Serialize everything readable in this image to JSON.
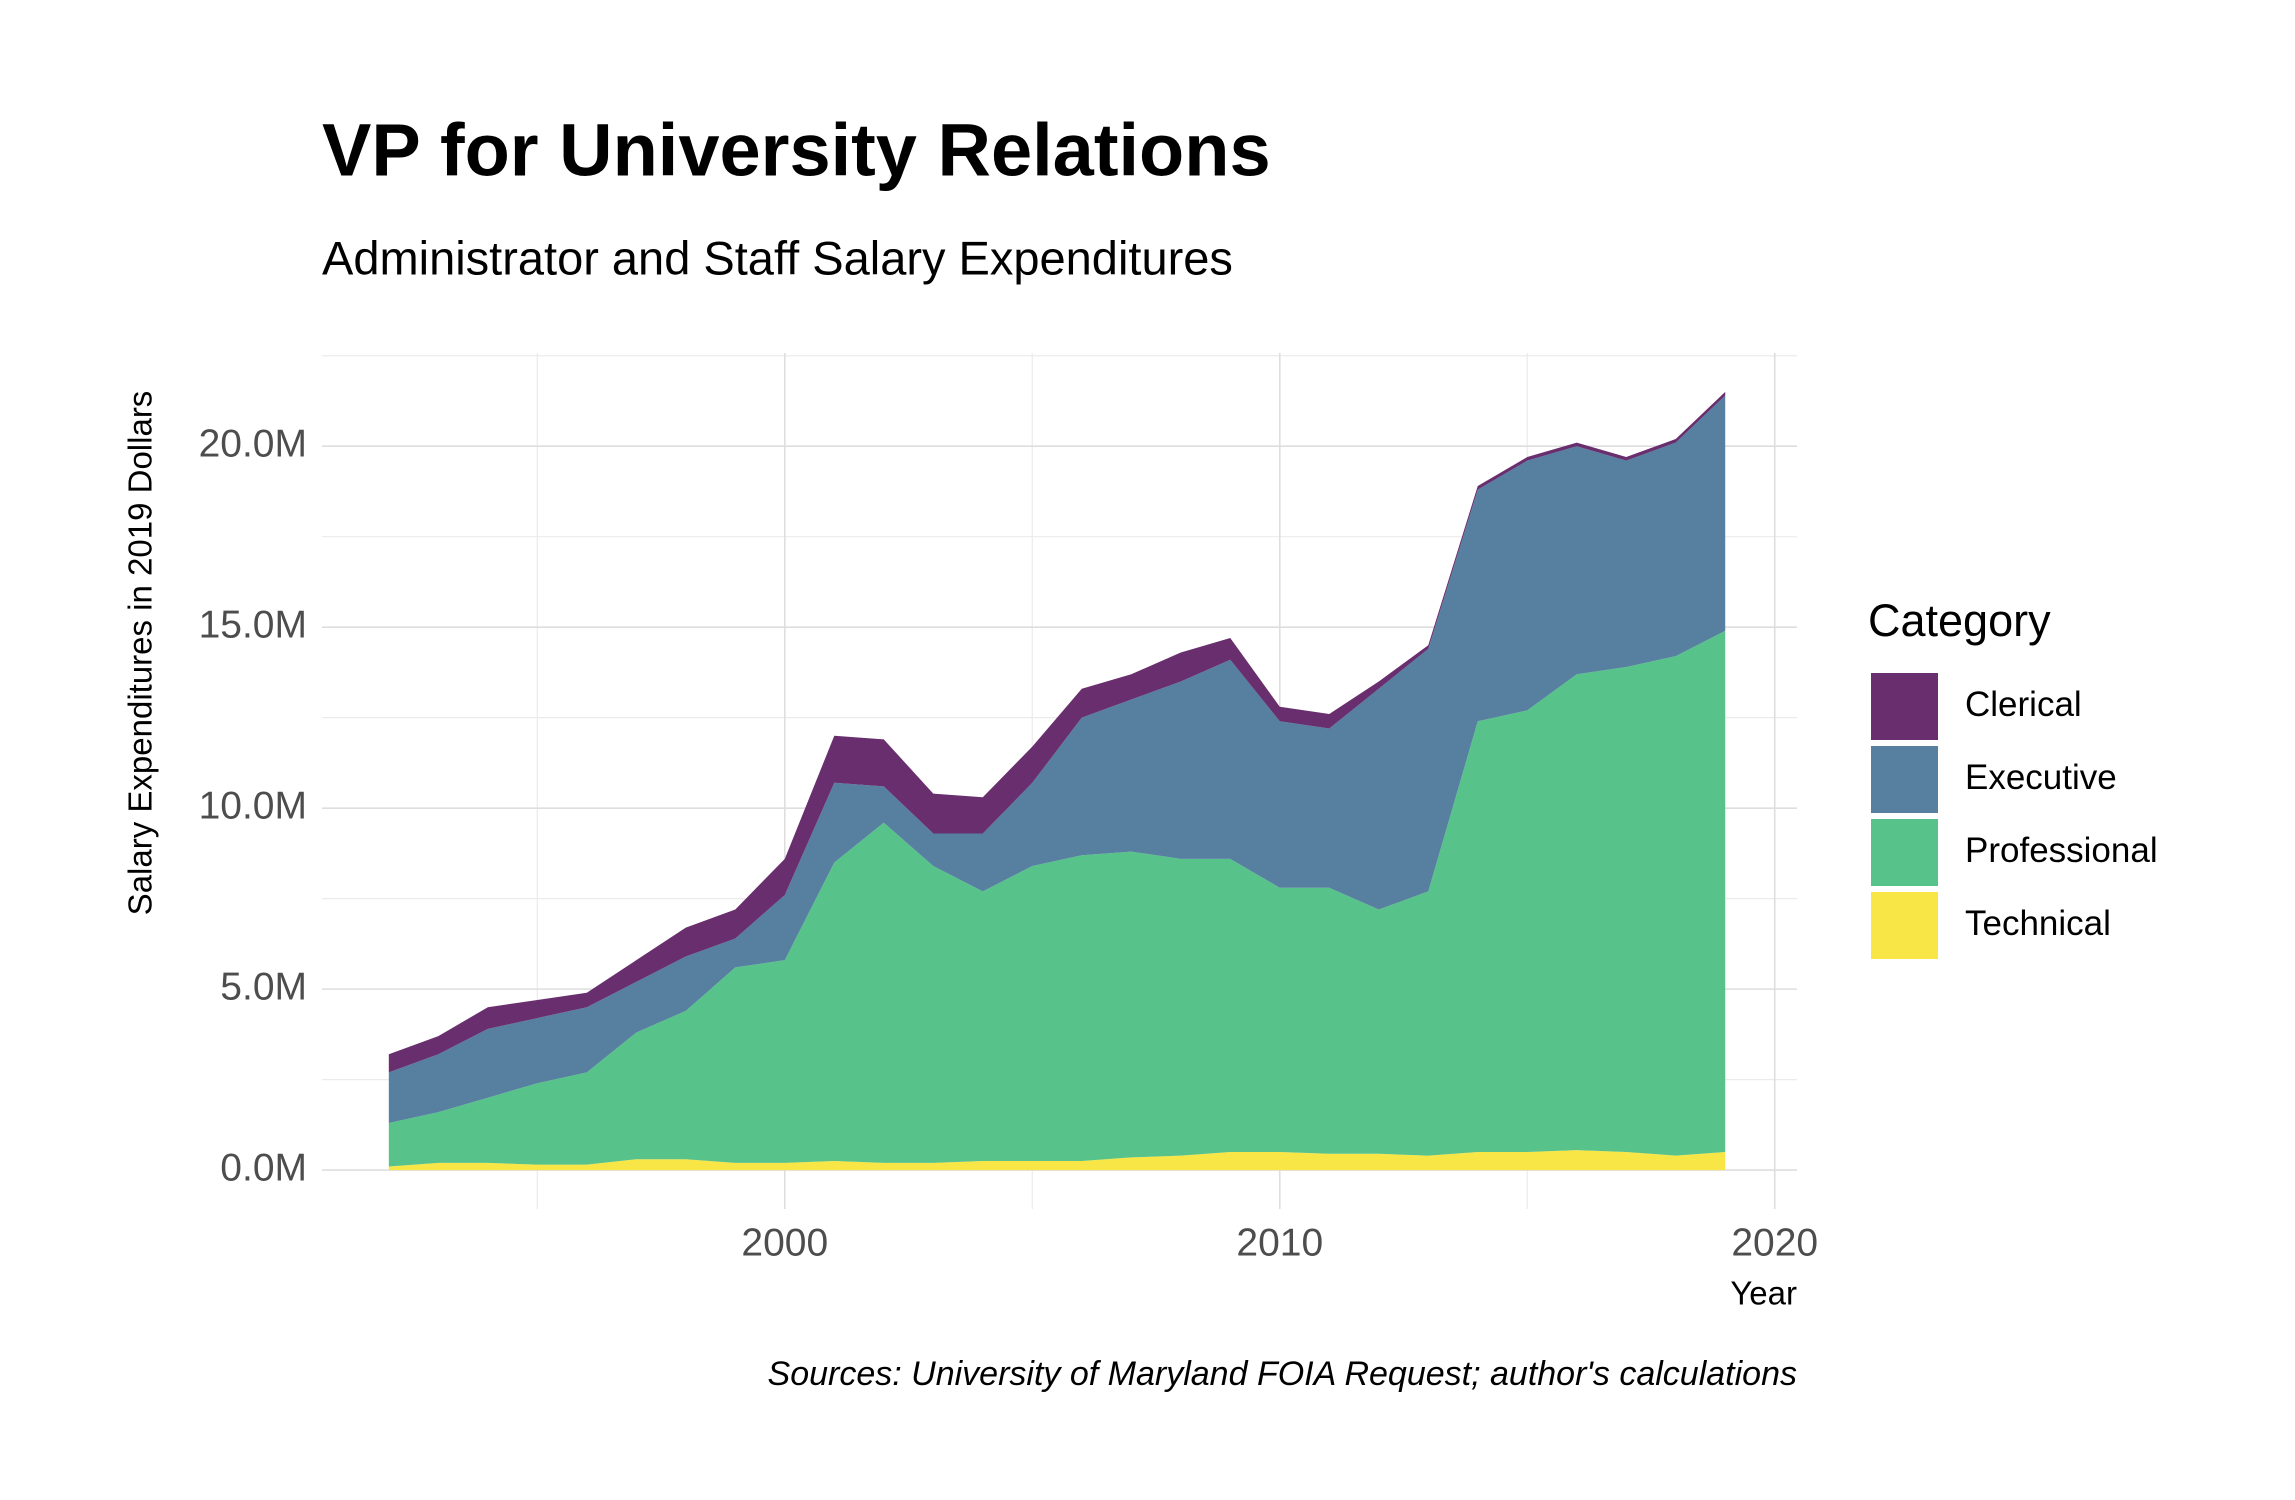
{
  "chart_data": {
    "type": "stacked-area",
    "title": "VP for University Relations",
    "subtitle": "Administrator and Staff Salary Expenditures",
    "caption": "Sources: University of Maryland FOIA Request; author's calculations",
    "x_label": "Year",
    "y_label": "Salary Expenditures in 2019 Dollars",
    "legend_title": "Category",
    "legend_position": "right",
    "grid": true,
    "x": [
      1992,
      1993,
      1994,
      1995,
      1996,
      1997,
      1998,
      1999,
      2000,
      2001,
      2002,
      2003,
      2004,
      2005,
      2006,
      2007,
      2008,
      2009,
      2010,
      2011,
      2012,
      2013,
      2014,
      2015,
      2016,
      2017,
      2018,
      2019
    ],
    "xlim": [
      1990.65,
      2020.45
    ],
    "xticks": [
      2000,
      2010,
      2020
    ],
    "ylim": [
      -1075000,
      22575000
    ],
    "yticks": [
      {
        "value": 0,
        "label": "0.0M"
      },
      {
        "value": 5000000,
        "label": "5.0M"
      },
      {
        "value": 10000000,
        "label": "10.0M"
      },
      {
        "value": 15000000,
        "label": "15.0M"
      },
      {
        "value": 20000000,
        "label": "20.0M"
      }
    ],
    "series": [
      {
        "name": "Clerical",
        "color": "#682e6e",
        "values": [
          500000,
          500000,
          600000,
          500000,
          400000,
          600000,
          800000,
          800000,
          1000000,
          1300000,
          1300000,
          1100000,
          1000000,
          1000000,
          800000,
          700000,
          800000,
          600000,
          400000,
          400000,
          200000,
          100000,
          100000,
          100000,
          100000,
          100000,
          100000,
          100000
        ]
      },
      {
        "name": "Executive",
        "color": "#567fa0",
        "values": [
          1400000,
          1600000,
          1900000,
          1800000,
          1800000,
          1400000,
          1500000,
          800000,
          1800000,
          2200000,
          1000000,
          900000,
          1600000,
          2300000,
          3800000,
          4200000,
          4900000,
          5500000,
          4600000,
          4400000,
          6100000,
          6700000,
          6400000,
          6900000,
          6300000,
          5700000,
          5900000,
          6500000
        ]
      },
      {
        "name": "Professional",
        "color": "#58c28b",
        "values": [
          1200000,
          1400000,
          1800000,
          2250000,
          2550000,
          3500000,
          4100000,
          5400000,
          5600000,
          8250000,
          9400000,
          8200000,
          7450000,
          8150000,
          8450000,
          8450000,
          8200000,
          8100000,
          7300000,
          7350000,
          6750000,
          7300000,
          11900000,
          12200000,
          13150000,
          13400000,
          13800000,
          14400000
        ]
      },
      {
        "name": "Technical",
        "color": "#f8e646",
        "values": [
          100000,
          200000,
          200000,
          150000,
          150000,
          300000,
          300000,
          200000,
          200000,
          250000,
          200000,
          200000,
          250000,
          250000,
          250000,
          350000,
          400000,
          500000,
          500000,
          450000,
          450000,
          400000,
          500000,
          500000,
          550000,
          500000,
          400000,
          500000
        ]
      }
    ]
  }
}
